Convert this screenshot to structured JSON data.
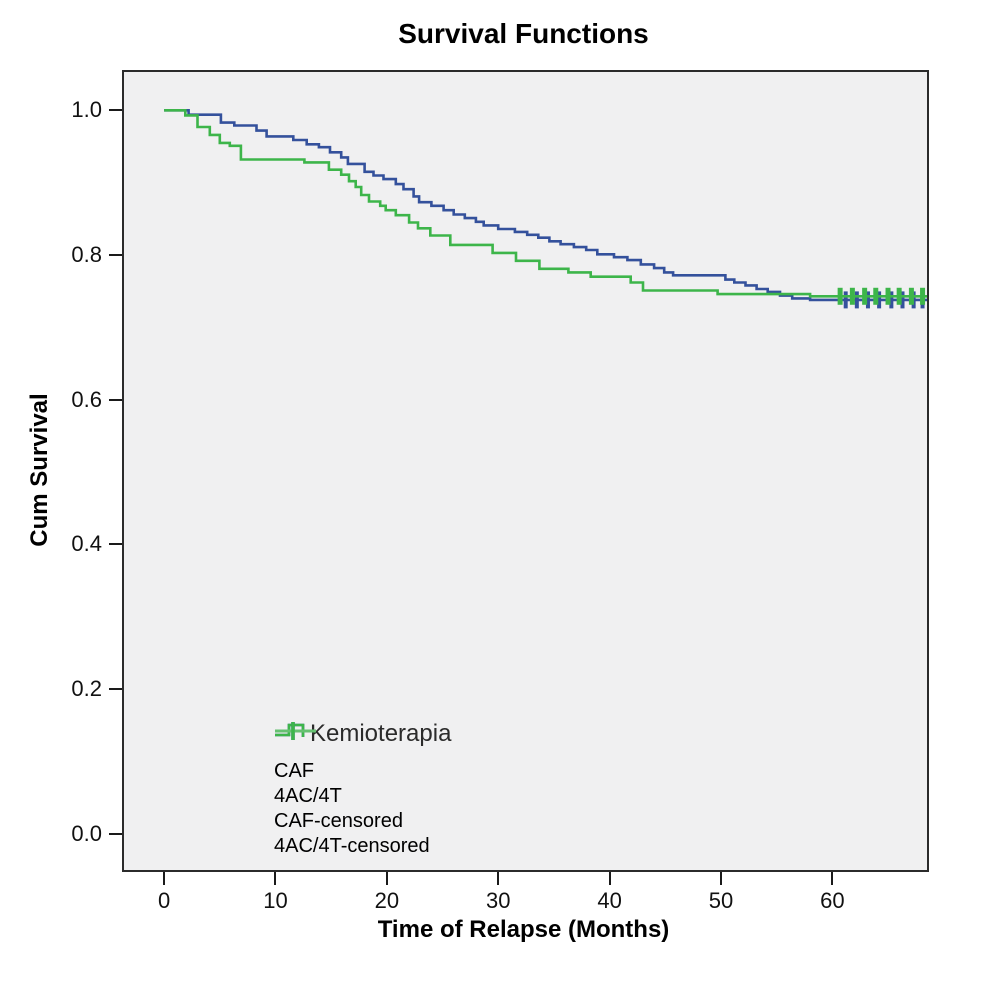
{
  "title": "Survival Functions",
  "x_axis": {
    "label": "Time of Relapse (Months)"
  },
  "y_axis": {
    "label": "Cum Survival"
  },
  "legend": {
    "title": "Kemioterapia",
    "items": [
      {
        "label": "CAF",
        "glyph": "step",
        "color": "#34519c",
        "line_color": "#34519c"
      },
      {
        "label": "4AC/4T",
        "glyph": "step",
        "color": "#3db54a",
        "line_color": "#3db54a"
      },
      {
        "label": "CAF-censored",
        "glyph": "censored",
        "color": "#34519c",
        "line_color": "#7e93cc"
      },
      {
        "label": "4AC/4T-censored",
        "glyph": "censored",
        "color": "#3db54a",
        "line_color": "#66c171"
      }
    ]
  },
  "colors": {
    "caf_line": "#34519c",
    "tact_line": "#3db54a",
    "plot_background": "#f0f0f1",
    "plot_border": "#2b2b2b",
    "page_background": "#ffffff"
  },
  "chart_data": {
    "type": "line",
    "subtype": "kaplan-meier-step-survival",
    "title": "Survival Functions",
    "xlabel": "Time of Relapse (Months)",
    "ylabel": "Cum Survival",
    "xlim": [
      -3.6,
      68.5
    ],
    "ylim": [
      -0.05,
      1.053
    ],
    "x_ticks": [
      0,
      10,
      20,
      30,
      40,
      50,
      60
    ],
    "y_ticks": [
      0.0,
      0.2,
      0.4,
      0.6,
      0.8,
      1.0
    ],
    "grid": false,
    "legend_position": "inside-lower-left",
    "series": [
      {
        "name": "CAF",
        "color": "#34519c",
        "steps": [
          [
            0,
            1.0
          ],
          [
            2.2,
            0.994
          ],
          [
            5.1,
            0.983
          ],
          [
            6.3,
            0.979
          ],
          [
            8.3,
            0.972
          ],
          [
            9.2,
            0.964
          ],
          [
            11.6,
            0.959
          ],
          [
            12.8,
            0.953
          ],
          [
            13.9,
            0.949
          ],
          [
            14.9,
            0.942
          ],
          [
            15.9,
            0.935
          ],
          [
            16.5,
            0.926
          ],
          [
            18.0,
            0.915
          ],
          [
            18.8,
            0.91
          ],
          [
            19.7,
            0.905
          ],
          [
            20.8,
            0.898
          ],
          [
            21.5,
            0.891
          ],
          [
            22.4,
            0.881
          ],
          [
            22.9,
            0.873
          ],
          [
            24.0,
            0.868
          ],
          [
            25.1,
            0.862
          ],
          [
            26.0,
            0.856
          ],
          [
            27.0,
            0.851
          ],
          [
            28.0,
            0.846
          ],
          [
            28.7,
            0.841
          ],
          [
            30.0,
            0.836
          ],
          [
            31.5,
            0.832
          ],
          [
            32.6,
            0.828
          ],
          [
            33.6,
            0.824
          ],
          [
            34.6,
            0.819
          ],
          [
            35.6,
            0.815
          ],
          [
            36.8,
            0.811
          ],
          [
            37.9,
            0.807
          ],
          [
            38.9,
            0.801
          ],
          [
            40.4,
            0.797
          ],
          [
            41.6,
            0.793
          ],
          [
            42.8,
            0.787
          ],
          [
            44.0,
            0.782
          ],
          [
            44.9,
            0.776
          ],
          [
            45.7,
            0.772
          ],
          [
            50.4,
            0.766
          ],
          [
            51.2,
            0.762
          ],
          [
            52.2,
            0.758
          ],
          [
            53.2,
            0.753
          ],
          [
            54.2,
            0.749
          ],
          [
            55.3,
            0.744
          ],
          [
            56.4,
            0.74
          ],
          [
            58.0,
            0.738
          ]
        ],
        "end_time": 68.5,
        "censored": {
          "survival": 0.738,
          "times": [
            61.2,
            62.2,
            63.2,
            64.2,
            65.3,
            66.3,
            67.3,
            68.1
          ]
        }
      },
      {
        "name": "4AC/4T",
        "color": "#3db54a",
        "steps": [
          [
            0,
            1.0
          ],
          [
            1.9,
            0.993
          ],
          [
            3.0,
            0.977
          ],
          [
            4.1,
            0.966
          ],
          [
            5.0,
            0.955
          ],
          [
            5.9,
            0.951
          ],
          [
            6.9,
            0.932
          ],
          [
            12.6,
            0.928
          ],
          [
            14.8,
            0.918
          ],
          [
            15.9,
            0.911
          ],
          [
            16.6,
            0.902
          ],
          [
            17.2,
            0.894
          ],
          [
            17.7,
            0.883
          ],
          [
            18.4,
            0.874
          ],
          [
            19.4,
            0.868
          ],
          [
            19.9,
            0.862
          ],
          [
            20.8,
            0.855
          ],
          [
            22.0,
            0.845
          ],
          [
            22.8,
            0.837
          ],
          [
            23.9,
            0.827
          ],
          [
            25.7,
            0.814
          ],
          [
            29.5,
            0.803
          ],
          [
            31.6,
            0.792
          ],
          [
            33.7,
            0.781
          ],
          [
            36.3,
            0.776
          ],
          [
            38.3,
            0.77
          ],
          [
            41.9,
            0.762
          ],
          [
            43.0,
            0.751
          ],
          [
            49.7,
            0.746
          ],
          [
            58.0,
            0.743
          ]
        ],
        "end_time": 68.5,
        "censored": {
          "survival": 0.743,
          "times": [
            60.7,
            61.8,
            62.9,
            63.9,
            65.0,
            66.0,
            67.1,
            68.1
          ]
        }
      }
    ]
  }
}
